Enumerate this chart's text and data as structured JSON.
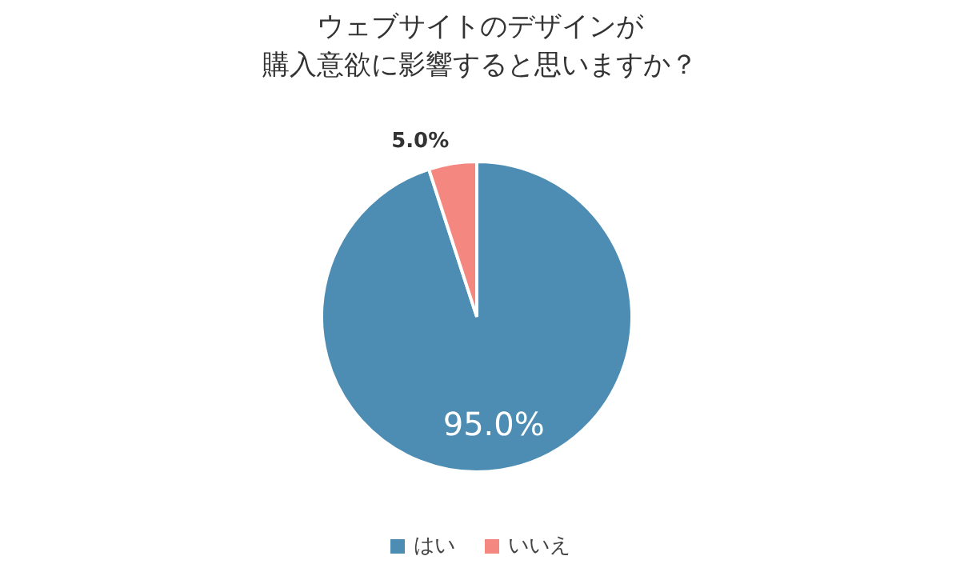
{
  "chart_data": {
    "type": "pie",
    "title": "ウェブサイトのデザインが購入意欲に影響すると思いますか？",
    "categories": [
      "はい",
      "いいえ"
    ],
    "values": [
      95,
      5
    ],
    "colors": [
      "#4d8db3",
      "#f4877f"
    ],
    "value_labels": [
      "95.0%",
      "5.0%"
    ],
    "legend": "bottom"
  }
}
